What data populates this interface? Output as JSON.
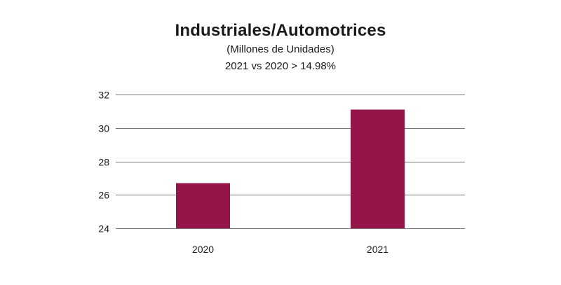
{
  "chart_data": {
    "type": "bar",
    "title": "Industriales/Automotrices",
    "subtitle": "(Millones de Unidades)",
    "annotation": "2021 vs 2020 > 14.98%",
    "categories": [
      "2020",
      "2021"
    ],
    "values": [
      26.7,
      31.1
    ],
    "yticks": [
      "24",
      "26",
      "28",
      "30",
      "32"
    ],
    "ylim": [
      24,
      32
    ],
    "grid": true,
    "bar_color": "#93154A",
    "grid_color": "#777777",
    "xlabel": "",
    "ylabel": ""
  }
}
